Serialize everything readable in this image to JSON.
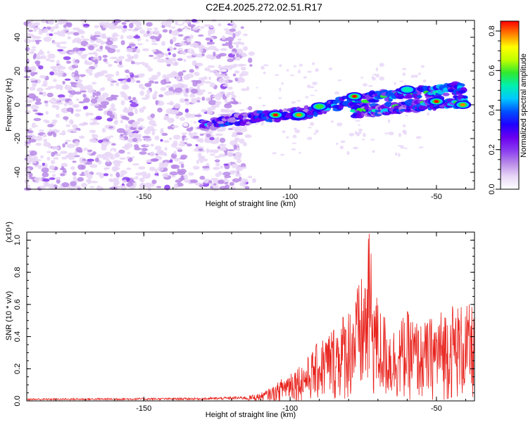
{
  "title": "C2E4.2025.272.02.51.R17",
  "colors": {
    "snr_line": "#e8221c",
    "axis": "#000000",
    "colormap": [
      "#ffffff",
      "#e7d6f7",
      "#b98ae8",
      "#8a3cf0",
      "#6a00f0",
      "#2000ff",
      "#0050ff",
      "#00c8ff",
      "#00f0b0",
      "#30e830",
      "#c0ff00",
      "#ffff00",
      "#ff8000",
      "#ff0000"
    ]
  },
  "chart_data": [
    {
      "type": "heatmap",
      "description_series": "frequency vs height spectrogram",
      "xlabel": "Height of straight line (km)",
      "ylabel": "Frequency (Hz)",
      "xlim": [
        -190,
        -37
      ],
      "ylim": [
        -50,
        50
      ],
      "xticks": [
        -150,
        -100,
        -50
      ],
      "xtick_labels": [
        "-150",
        "-100",
        "-50"
      ],
      "yticks": [
        -40,
        -20,
        0,
        20,
        40
      ],
      "ytick_labels": [
        "-40",
        "-20",
        "0",
        "20",
        "40"
      ],
      "noise_region_x": [
        -190,
        -112
      ],
      "tracks": [
        {
          "name": "upper track",
          "x": [
            -130,
            -110,
            -95,
            -80,
            -65,
            -50,
            -40
          ],
          "y": [
            -12,
            -7,
            -5,
            2,
            6,
            8,
            10
          ]
        },
        {
          "name": "lower track",
          "x": [
            -78,
            -70,
            -60,
            -50,
            -40
          ],
          "y": [
            -4,
            -3,
            -1,
            1,
            2
          ]
        }
      ],
      "hotspots": [
        {
          "x": -105,
          "y": -6,
          "v": 0.85
        },
        {
          "x": -97,
          "y": -6,
          "v": 0.8
        },
        {
          "x": -78,
          "y": 5,
          "v": 0.85
        },
        {
          "x": -50,
          "y": 2,
          "v": 0.85
        },
        {
          "x": -41,
          "y": 0,
          "v": 0.8
        },
        {
          "x": -90,
          "y": -1,
          "v": 0.6
        },
        {
          "x": -60,
          "y": 9,
          "v": 0.55
        }
      ],
      "colorbar": {
        "label": "Normalized spectral amplitude",
        "range": [
          0,
          0.85
        ],
        "ticks": [
          0.0,
          0.2,
          0.4,
          0.6,
          0.8
        ],
        "tick_labels": [
          "0.0",
          "0.2",
          "0.4",
          "0.6",
          "0.8"
        ]
      }
    },
    {
      "type": "line",
      "name": "SNR",
      "xlabel": "Height of straight line (km)",
      "ylabel": "SNR (10 * v/v)",
      "y_multiplier": "(x10⁴)",
      "xlim": [
        -190,
        -37
      ],
      "ylim": [
        0,
        1.05
      ],
      "xticks": [
        -150,
        -100,
        -50
      ],
      "xtick_labels": [
        "-150",
        "-100",
        "-50"
      ],
      "yticks": [
        0.0,
        0.2,
        0.4,
        0.6,
        0.8,
        1.0
      ],
      "ytick_labels": [
        "0.0",
        "0.2",
        "0.4",
        "0.6",
        "0.8",
        "1.0"
      ],
      "envelope": {
        "x": [
          -190,
          -130,
          -115,
          -110,
          -105,
          -100,
          -95,
          -90,
          -85,
          -80,
          -75,
          -73,
          -72,
          -70,
          -65,
          -60,
          -55,
          -50,
          -45,
          -40,
          -37
        ],
        "y": [
          0.015,
          0.02,
          0.03,
          0.05,
          0.1,
          0.2,
          0.25,
          0.38,
          0.48,
          0.6,
          0.8,
          1.04,
          0.9,
          0.62,
          0.46,
          0.56,
          0.48,
          0.55,
          0.62,
          0.6,
          0.6
        ]
      },
      "peak": {
        "x": -73,
        "y": 1.04
      }
    }
  ]
}
